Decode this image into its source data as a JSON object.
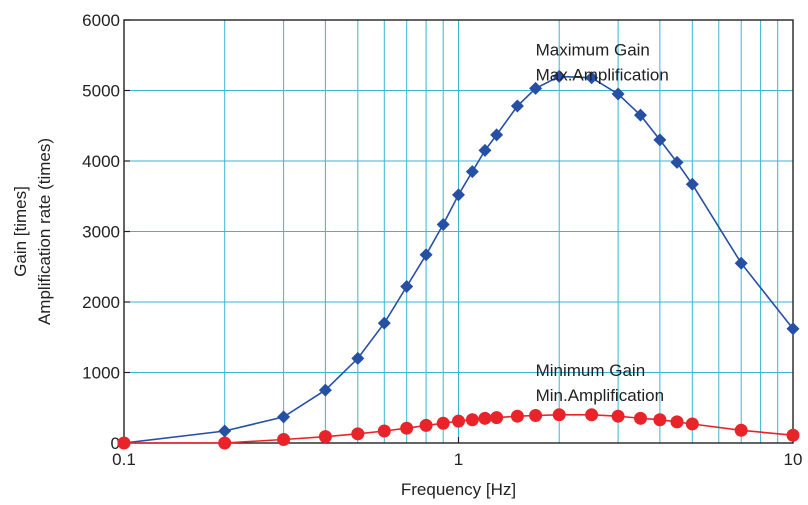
{
  "chart_data": {
    "type": "line",
    "title": "",
    "xlabel": "Frequency [Hz]",
    "ylabel_lines": [
      "Gain [times]",
      "Amplification rate (times)"
    ],
    "x_scale": "log",
    "xlim": [
      0.1,
      10
    ],
    "ylim": [
      0,
      6000
    ],
    "x_ticks": [
      {
        "value": 0.1,
        "label": "0.1"
      },
      {
        "value": 1,
        "label": "1"
      },
      {
        "value": 10,
        "label": "10"
      }
    ],
    "y_ticks": [
      {
        "value": 0,
        "label": "0"
      },
      {
        "value": 1000,
        "label": "1000"
      },
      {
        "value": 2000,
        "label": "2000"
      },
      {
        "value": 3000,
        "label": "3000"
      },
      {
        "value": 4000,
        "label": "4000"
      },
      {
        "value": 5000,
        "label": "5000"
      },
      {
        "value": 6000,
        "label": "6000"
      }
    ],
    "grid": {
      "x": true,
      "y": true,
      "color": "#3ab6cf"
    },
    "series": [
      {
        "marker": "diamond",
        "color": "#2550a4",
        "points": [
          [
            0.1,
            0
          ],
          [
            0.2,
            170
          ],
          [
            0.3,
            370
          ],
          [
            0.4,
            750
          ],
          [
            0.5,
            1200
          ],
          [
            0.6,
            1700
          ],
          [
            0.7,
            2220
          ],
          [
            0.8,
            2670
          ],
          [
            0.9,
            3100
          ],
          [
            1.0,
            3520
          ],
          [
            1.1,
            3850
          ],
          [
            1.2,
            4150
          ],
          [
            1.3,
            4370
          ],
          [
            1.5,
            4780
          ],
          [
            1.7,
            5030
          ],
          [
            2.0,
            5200
          ],
          [
            2.5,
            5180
          ],
          [
            3.0,
            4950
          ],
          [
            3.5,
            4650
          ],
          [
            4.0,
            4300
          ],
          [
            4.5,
            3980
          ],
          [
            5.0,
            3670
          ],
          [
            7.0,
            2550
          ],
          [
            10.0,
            1620
          ]
        ]
      },
      {
        "marker": "circle",
        "color": "#e8242a",
        "points": [
          [
            0.1,
            0
          ],
          [
            0.2,
            0
          ],
          [
            0.3,
            50
          ],
          [
            0.4,
            90
          ],
          [
            0.5,
            130
          ],
          [
            0.6,
            170
          ],
          [
            0.7,
            210
          ],
          [
            0.8,
            250
          ],
          [
            0.9,
            280
          ],
          [
            1.0,
            310
          ],
          [
            1.1,
            330
          ],
          [
            1.2,
            350
          ],
          [
            1.3,
            360
          ],
          [
            1.5,
            380
          ],
          [
            1.7,
            390
          ],
          [
            2.0,
            400
          ],
          [
            2.5,
            400
          ],
          [
            3.0,
            380
          ],
          [
            3.5,
            350
          ],
          [
            4.0,
            330
          ],
          [
            4.5,
            300
          ],
          [
            5.0,
            270
          ],
          [
            7.0,
            180
          ],
          [
            10.0,
            110
          ]
        ]
      }
    ],
    "annotations": [
      {
        "lines": [
          "Maximum Gain",
          "Max.Amplification"
        ],
        "x": 1.7,
        "y": 5500
      },
      {
        "lines": [
          "Minimum Gain",
          "Min.Amplification"
        ],
        "x": 1.7,
        "y": 950
      }
    ]
  }
}
